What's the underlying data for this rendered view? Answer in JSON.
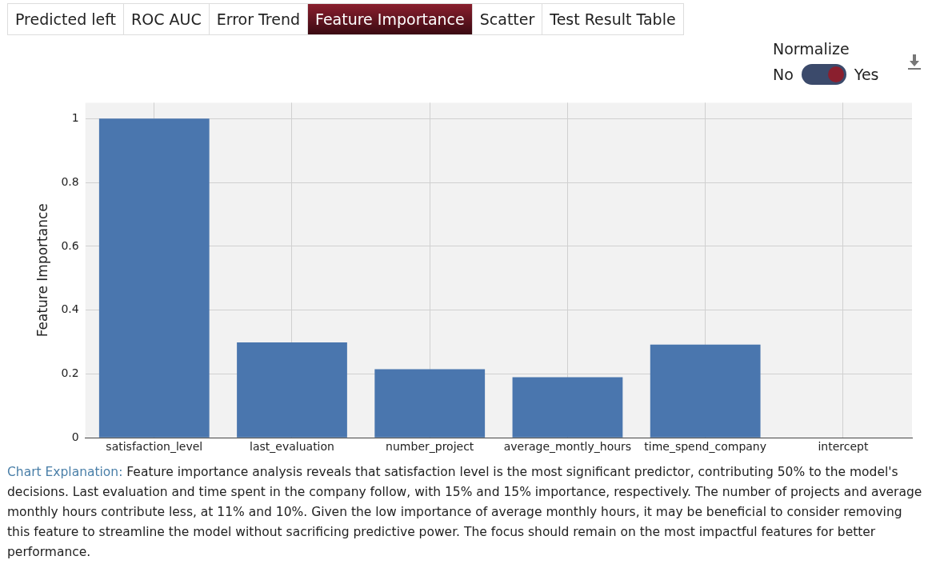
{
  "chart_data": {
    "type": "bar",
    "ylabel": "Feature Importance",
    "categories": [
      "satisfaction_level",
      "last_evaluation",
      "number_project",
      "average_montly_hours",
      "time_spend_company",
      "intercept"
    ],
    "values": [
      1,
      0.299,
      0.215,
      0.19,
      0.292,
      0
    ],
    "color": "#4a76ae",
    "ylim": [
      0,
      1.05
    ],
    "yticks": [
      0,
      0.2,
      0.4,
      0.6,
      0.8,
      1
    ],
    "grid": true,
    "legend": false,
    "annotations": [
      "Predicted left",
      "ROC AUC",
      "Error Trend",
      "Feature Importance",
      "Scatter",
      "Test Result Table",
      "Normalize",
      "No",
      "Yes",
      "Chart Explanation:",
      "Feature importance analysis reveals that satisfaction level is the most significant predictor, contributing 50% to the model's decisions. Last evaluation and time spent in the company follow, with 15% and 15% importance, respectively. The number of projects and average monthly hours contribute less, at 11% and 10%. Given the low importance of average monthly hours, it may be beneficial to consider removing this feature to streamline the model without sacrificing predictive power. The focus should remain on the most impactful features for better performance."
    ]
  }
}
